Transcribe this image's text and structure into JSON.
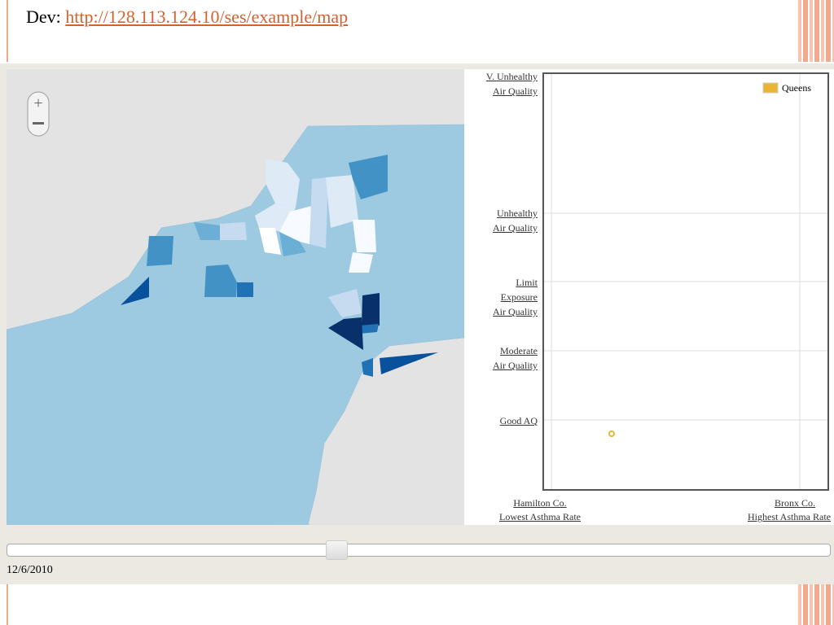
{
  "header": {
    "prefix": "Dev:",
    "link": "http://128.113.124.10/ses/example/map"
  },
  "plot": {
    "y_labels": [
      [
        "V. Unhealthy",
        "Air Quality"
      ],
      [
        "Unhealthy",
        "Air Quality"
      ],
      [
        "Limit",
        "Exposure",
        "Air Quality"
      ],
      [
        "Moderate",
        "Air Quality"
      ],
      [
        "Good AQ"
      ]
    ],
    "legend": "Queens",
    "x_labels": [
      [
        "Hamilton Co.",
        "Lowest Asthma Rate"
      ],
      [
        "Bronx Co.",
        "Highest Asthma Rate"
      ]
    ]
  },
  "slider": {
    "date": "12/6/2010"
  }
}
